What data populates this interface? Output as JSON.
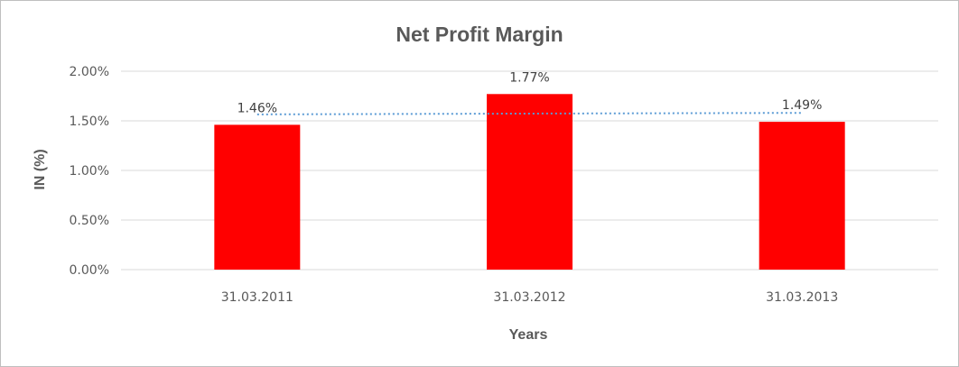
{
  "chart_data": {
    "type": "bar",
    "title": "Net Profit Margin",
    "xlabel": "Years",
    "ylabel": "IN (%)",
    "categories": [
      "31.03.2011",
      "31.03.2012",
      "31.03.2013"
    ],
    "series": [
      {
        "values": [
          1.46,
          1.77,
          1.49
        ],
        "data_labels": [
          "1.46%",
          "1.77%",
          "1.49%"
        ],
        "color": "#ff0000"
      }
    ],
    "trendline": {
      "type": "linear",
      "style": "dotted",
      "color": "#5b9bd5",
      "values": [
        1.565,
        1.573,
        1.58
      ]
    },
    "ylim": [
      0,
      2
    ],
    "yticks": [
      0,
      0.5,
      1,
      1.5,
      2
    ],
    "ytick_labels": [
      "0.00%",
      "0.50%",
      "1.00%",
      "1.50%",
      "2.00%"
    ],
    "grid": true,
    "legend": "none"
  }
}
